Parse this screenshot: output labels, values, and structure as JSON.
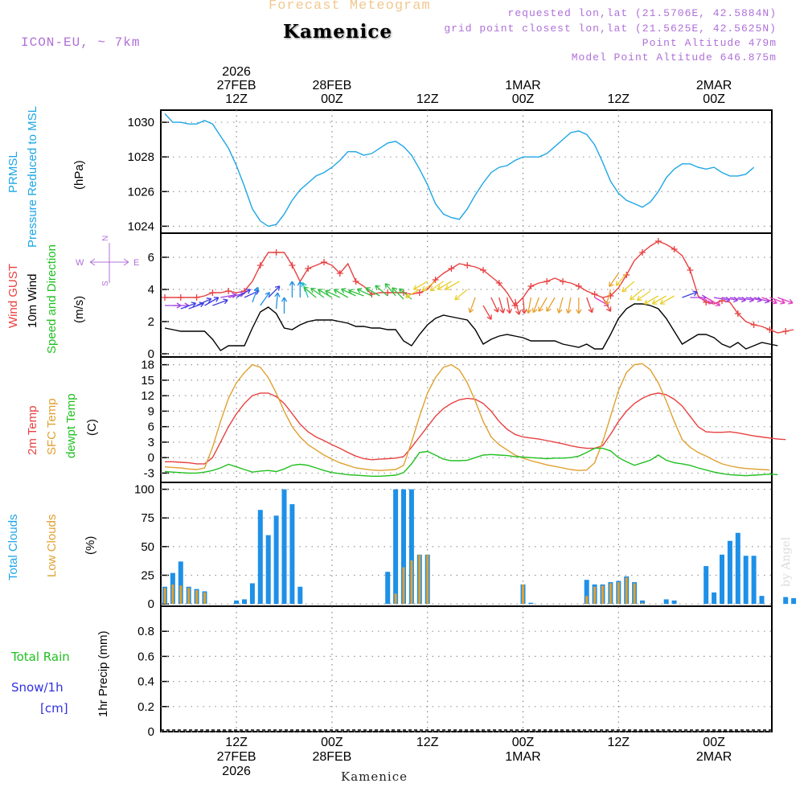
{
  "header": {
    "title_top": "Forecast Meteogram",
    "location": "Kamenice",
    "model": "ICON-EU, ~ 7km",
    "requested": "requested lon,lat (21.5706E, 42.5884N)",
    "closest": "grid point closest lon,lat (21.5625E, 42.5625N)",
    "point_alt": "Point Altitude 479m",
    "model_alt": "Model Point Altitude 646.875m"
  },
  "footer": {
    "location": "Kamenice",
    "credit": "by Angel"
  },
  "colors": {
    "pressure": "#1ea6e6",
    "gust": "#e84040",
    "wind": "#000000",
    "t2m": "#e84040",
    "sfc": "#e0a030",
    "dew": "#20c020",
    "total": "#1e90e8",
    "low": "#e0a030",
    "rain": "#20c020",
    "snow": "#3030e0",
    "purple": "#b070d8"
  },
  "chart_data": {
    "type": "line",
    "time_axis": {
      "start": "2026-02-26 15Z",
      "step_hours": 1,
      "range_hours": [
        0,
        64
      ],
      "gridlines_hours": [
        9,
        21,
        33,
        45,
        57
      ],
      "top_labels": [
        {
          "h": 9,
          "lines": [
            "2026",
            "27FEB",
            "12Z"
          ]
        },
        {
          "h": 21,
          "lines": [
            "28FEB",
            "00Z"
          ]
        },
        {
          "h": 33,
          "lines": [
            "12Z"
          ]
        },
        {
          "h": 45,
          "lines": [
            "1MAR",
            "00Z"
          ]
        },
        {
          "h": 57,
          "lines": [
            "12Z"
          ]
        },
        {
          "h": 69,
          "lines": [
            "2MAR",
            "00Z"
          ]
        }
      ],
      "bottom_labels": [
        {
          "h": 9,
          "lines": [
            "12Z",
            "27FEB",
            "2026"
          ]
        },
        {
          "h": 21,
          "lines": [
            "00Z",
            "28FEB"
          ]
        },
        {
          "h": 33,
          "lines": [
            "12Z"
          ]
        },
        {
          "h": 45,
          "lines": [
            "00Z",
            "1MAR"
          ]
        },
        {
          "h": 57,
          "lines": [
            "12Z"
          ]
        },
        {
          "h": 69,
          "lines": [
            "00Z",
            "2MAR"
          ]
        }
      ]
    },
    "panels": [
      {
        "id": "pressure",
        "labels": [
          "PRMSL",
          "Pressure Reduced to MSL"
        ],
        "unit": "(hPa)",
        "ylim": [
          1023.6,
          1030.7
        ],
        "yticks": [
          1024,
          1026,
          1028,
          1030
        ],
        "series": [
          {
            "name": "PRMSL",
            "color": "#1ea6e6",
            "values": [
              1030.5,
              1030.0,
              1030.0,
              1029.9,
              1029.9,
              1030.1,
              1029.9,
              1029.2,
              1028.5,
              1027.5,
              1026.3,
              1025.0,
              1024.3,
              1024.0,
              1024.1,
              1024.7,
              1025.5,
              1026.1,
              1026.5,
              1026.9,
              1027.1,
              1027.4,
              1027.8,
              1028.3,
              1028.3,
              1028.1,
              1028.2,
              1028.5,
              1028.8,
              1028.9,
              1028.6,
              1028.1,
              1027.3,
              1026.4,
              1025.3,
              1024.7,
              1024.5,
              1024.4,
              1025.0,
              1025.8,
              1026.5,
              1027.1,
              1027.4,
              1027.5,
              1027.8,
              1028.0,
              1028.0,
              1028.0,
              1028.2,
              1028.6,
              1029.0,
              1029.4,
              1029.5,
              1029.3,
              1028.7,
              1027.7,
              1026.6,
              1025.9,
              1025.5,
              1025.3,
              1025.1,
              1025.4,
              1026.0,
              1026.8,
              1027.3,
              1027.6,
              1027.6,
              1027.4,
              1027.3,
              1027.4,
              1027.1,
              1026.9,
              1026.9,
              1027.0,
              1027.4
            ]
          }
        ]
      },
      {
        "id": "wind",
        "labels": [
          "Wind GUST",
          "10m Wind",
          "Speed and Direction"
        ],
        "unit": "(m/s)",
        "ylim": [
          -0.2,
          7.5
        ],
        "yticks": [
          0,
          2,
          4,
          6
        ],
        "compass": {
          "n": "N",
          "s": "S",
          "w": "W",
          "e": "E"
        },
        "series": [
          {
            "name": "Wind GUST",
            "color": "#e84040",
            "values": [
              3.5,
              3.5,
              3.5,
              3.5,
              3.5,
              3.6,
              3.8,
              3.8,
              3.9,
              3.8,
              3.9,
              4.5,
              5.5,
              6.3,
              6.3,
              6.3,
              5.5,
              4.5,
              5.3,
              5.5,
              5.7,
              5.5,
              5.0,
              5.6,
              4.5,
              4.2,
              3.7,
              3.8,
              3.8,
              3.8,
              3.8,
              3.7,
              3.8,
              4.0,
              4.6,
              5.0,
              5.3,
              5.6,
              5.5,
              5.4,
              5.2,
              4.8,
              4.4,
              3.8,
              3.0,
              3.5,
              4.2,
              4.4,
              4.5,
              4.7,
              4.5,
              4.4,
              4.2,
              3.9,
              3.7,
              3.5,
              3.6,
              4.1,
              4.9,
              5.8,
              6.3,
              6.7,
              7.0,
              6.8,
              6.5,
              6.1,
              5.2,
              3.6,
              3.2,
              3.1,
              3.3,
              3.2,
              2.5,
              2.0,
              1.8,
              1.7,
              1.5,
              1.3,
              1.4,
              1.5
            ]
          },
          {
            "name": "10m Wind",
            "color": "#000000",
            "values": [
              1.6,
              1.5,
              1.4,
              1.4,
              1.4,
              1.4,
              0.9,
              0.2,
              0.5,
              0.5,
              0.5,
              1.6,
              2.6,
              2.9,
              2.5,
              1.6,
              1.5,
              1.8,
              2.0,
              2.1,
              2.1,
              2.1,
              2.0,
              1.9,
              1.7,
              1.7,
              1.6,
              1.6,
              1.5,
              1.5,
              0.8,
              0.5,
              1.2,
              1.8,
              2.2,
              2.4,
              2.3,
              2.2,
              2.1,
              1.5,
              0.6,
              0.9,
              1.1,
              1.2,
              1.1,
              1.0,
              0.8,
              0.8,
              0.8,
              0.8,
              0.6,
              0.5,
              0.4,
              0.6,
              0.3,
              0.3,
              1.2,
              2.2,
              2.8,
              3.1,
              3.1,
              3.0,
              2.8,
              2.2,
              1.4,
              0.6,
              0.9,
              1.2,
              1.2,
              1.0,
              0.6,
              0.4,
              0.7,
              0.3,
              0.5,
              0.7,
              0.6,
              0.5
            ]
          }
        ],
        "wind_dir_deg": [
          270,
          270,
          250,
          250,
          245,
          240,
          250,
          260,
          255,
          240,
          245,
          200,
          215,
          225,
          185,
          180,
          180,
          180,
          160,
          130,
          125,
          120,
          115,
          120,
          115,
          110,
          115,
          120,
          130,
          140,
          135,
          130,
          60,
          60,
          55,
          55,
          60,
          60,
          50,
          20,
          330,
          335,
          345,
          350,
          345,
          355,
          10,
          20,
          30,
          30,
          15,
          10,
          0,
          340,
          300,
          330,
          15,
          35,
          40,
          50,
          50,
          55,
          60,
          60,
          60,
          250,
          270,
          290,
          300,
          280,
          280,
          280,
          280,
          280,
          285,
          290,
          290,
          290
        ],
        "wind_arrow_speed": [
          3.0,
          3.0,
          2.8,
          2.8,
          3.0,
          3.0,
          3.0,
          3.5,
          3.5,
          3.5,
          3.5,
          3.2,
          3.0,
          3.5,
          2.8,
          2.5,
          3.5,
          3.5,
          3.5,
          3.5,
          3.5,
          3.5,
          3.5,
          3.5,
          3.6,
          3.6,
          3.6,
          3.6,
          3.6,
          3.6,
          3.4,
          3.4,
          4.0,
          4.5,
          4.5,
          4.5,
          4.5,
          4.5,
          4.0,
          3.5,
          3.0,
          3.5,
          3.5,
          3.5,
          3.4,
          3.5,
          3.5,
          3.5,
          3.5,
          3.5,
          3.5,
          3.5,
          3.5,
          3.5,
          3.5,
          3.5,
          4.0,
          5.0,
          5.0,
          4.5,
          4.0,
          3.9,
          3.6,
          3.6,
          3.6,
          3.5,
          3.5,
          3.5,
          3.5,
          3.5,
          3.5,
          3.5,
          3.5,
          3.5,
          3.5,
          3.5,
          3.5,
          3.5
        ]
      },
      {
        "id": "temp",
        "labels": [
          "2m Temp",
          "SFC Temp",
          "dewpt Temp"
        ],
        "unit": "(C)",
        "ylim": [
          -4.8,
          19.5
        ],
        "yticks": [
          -3,
          0,
          3,
          6,
          9,
          12,
          15,
          18
        ],
        "series": [
          {
            "name": "2m Temp",
            "color": "#e84040",
            "values": [
              -0.8,
              -0.8,
              -0.9,
              -1.0,
              -1.2,
              -1.2,
              0.0,
              3.0,
              6.0,
              8.5,
              10.5,
              12.0,
              12.5,
              12.5,
              11.8,
              10.5,
              8.5,
              6.5,
              5.0,
              4.0,
              3.3,
              2.5,
              1.8,
              1.0,
              0.3,
              -0.2,
              -0.4,
              -0.3,
              -0.2,
              -0.1,
              0.2,
              2.0,
              4.0,
              6.0,
              8.0,
              9.5,
              10.5,
              11.2,
              11.5,
              11.3,
              10.5,
              9.0,
              7.0,
              5.5,
              4.5,
              4.0,
              3.8,
              3.6,
              3.3,
              3.0,
              2.7,
              2.3,
              2.0,
              1.8,
              1.8,
              2.3,
              4.5,
              7.0,
              9.0,
              10.5,
              11.5,
              12.2,
              12.5,
              12.2,
              11.3,
              10.0,
              8.0,
              6.0,
              5.0,
              4.9,
              4.9,
              5.0,
              4.8,
              4.5,
              4.2,
              4.0,
              3.8,
              3.6,
              3.5
            ]
          },
          {
            "name": "SFC Temp",
            "color": "#e0a030",
            "values": [
              -1.8,
              -1.9,
              -2.0,
              -2.2,
              -2.3,
              -2.0,
              2.0,
              7.0,
              11.5,
              14.5,
              16.5,
              18.0,
              17.5,
              15.5,
              12.5,
              9.0,
              6.0,
              4.0,
              2.5,
              1.5,
              0.5,
              -0.3,
              -1.0,
              -1.5,
              -2.0,
              -2.2,
              -2.4,
              -2.5,
              -2.4,
              -2.3,
              -1.5,
              3.0,
              8.0,
              12.5,
              15.5,
              17.5,
              18.0,
              17.0,
              14.5,
              11.0,
              7.0,
              4.0,
              2.5,
              1.5,
              0.5,
              -0.1,
              -0.6,
              -1.0,
              -1.4,
              -1.7,
              -2.0,
              -2.3,
              -2.5,
              -2.4,
              -1.0,
              3.0,
              8.0,
              13.0,
              16.5,
              18.0,
              18.2,
              17.0,
              14.5,
              11.0,
              7.0,
              3.5,
              2.0,
              1.0,
              0.3,
              -0.5,
              -1.2,
              -1.6,
              -1.9,
              -2.1,
              -2.2,
              -2.3,
              -2.4
            ]
          },
          {
            "name": "dewpt Temp",
            "color": "#20c020",
            "values": [
              -2.7,
              -2.8,
              -2.9,
              -3.0,
              -3.0,
              -2.8,
              -2.5,
              -2.0,
              -1.3,
              -1.8,
              -2.3,
              -2.8,
              -2.6,
              -2.5,
              -2.7,
              -2.2,
              -1.5,
              -1.3,
              -1.5,
              -2.0,
              -2.5,
              -2.9,
              -3.1,
              -3.3,
              -3.4,
              -3.5,
              -3.6,
              -3.6,
              -3.5,
              -3.4,
              -2.9,
              -1.2,
              1.0,
              1.2,
              0.5,
              -0.3,
              -0.6,
              -0.6,
              -0.5,
              0.0,
              0.5,
              0.6,
              0.5,
              0.4,
              0.2,
              0.1,
              0.0,
              -0.1,
              -0.2,
              -0.1,
              -0.1,
              0.0,
              0.3,
              1.0,
              1.8,
              1.8,
              1.3,
              0.0,
              -0.8,
              -1.5,
              -1.0,
              -0.5,
              0.5,
              -0.5,
              -1.0,
              -1.2,
              -1.5,
              -2.0,
              -2.4,
              -2.8,
              -3.1,
              -3.3,
              -3.4,
              -3.5,
              -3.4,
              -3.3,
              -3.2,
              -3.3
            ]
          }
        ]
      },
      {
        "id": "clouds",
        "labels": [
          "Total Clouds",
          "Low Clouds"
        ],
        "unit": "(%)",
        "ylim": [
          -2,
          106
        ],
        "yticks": [
          0,
          25,
          50,
          75,
          100
        ],
        "bars": [
          {
            "name": "Total Clouds",
            "color": "#1e90e8",
            "values": [
              15,
              27,
              37,
              15,
              13,
              11,
              0,
              0,
              0,
              3,
              4,
              18,
              82,
              60,
              77,
              100,
              87,
              15,
              0,
              0,
              0,
              0,
              0,
              0,
              0,
              0,
              0,
              0,
              28,
              100,
              100,
              100,
              43,
              43,
              0,
              0,
              0,
              0,
              0,
              0,
              0,
              0,
              0,
              0,
              0,
              17,
              1,
              0,
              0,
              0,
              0,
              0,
              0,
              21,
              17,
              17,
              19,
              20,
              24,
              19,
              3,
              0,
              0,
              4,
              3,
              0,
              0,
              0,
              33,
              10,
              43,
              55,
              62,
              42,
              42,
              7,
              0,
              0,
              6,
              5
            ]
          },
          {
            "name": "Low Clouds",
            "color": "#e0a030",
            "values": [
              14,
              17,
              16,
              14,
              12,
              10,
              0,
              0,
              0,
              0,
              0,
              0,
              0,
              0,
              0,
              0,
              0,
              0,
              0,
              0,
              0,
              0,
              0,
              0,
              0,
              0,
              0,
              0,
              0,
              9,
              32,
              38,
              43,
              43,
              0,
              0,
              0,
              0,
              0,
              0,
              0,
              0,
              0,
              0,
              0,
              17,
              0,
              0,
              0,
              0,
              0,
              0,
              0,
              7,
              15,
              16,
              18,
              19,
              23,
              18,
              1,
              0,
              0,
              0,
              0,
              0,
              0,
              0,
              0,
              0,
              0,
              0,
              0,
              0,
              0,
              0,
              0,
              0,
              0,
              0
            ]
          }
        ]
      },
      {
        "id": "precip",
        "labels": [
          "Total  Rain",
          "Snow/1h",
          "[cm]"
        ],
        "unit": "1hr Precip (mm)",
        "ylim": [
          0,
          1.0
        ],
        "yticks": [
          0,
          0.2,
          0.4,
          0.6,
          0.8
        ],
        "series": [
          {
            "name": "Total Rain",
            "color": "#20c020",
            "values": []
          },
          {
            "name": "Snow/1h",
            "color": "#3030e0",
            "values": []
          }
        ]
      }
    ]
  }
}
